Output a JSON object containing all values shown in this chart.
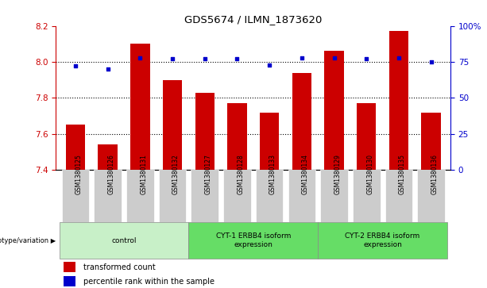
{
  "title": "GDS5674 / ILMN_1873620",
  "samples": [
    "GSM1380125",
    "GSM1380126",
    "GSM1380131",
    "GSM1380132",
    "GSM1380127",
    "GSM1380128",
    "GSM1380133",
    "GSM1380134",
    "GSM1380129",
    "GSM1380130",
    "GSM1380135",
    "GSM1380136"
  ],
  "bar_values": [
    7.65,
    7.54,
    8.1,
    7.9,
    7.83,
    7.77,
    7.72,
    7.94,
    8.06,
    7.77,
    8.17,
    7.72
  ],
  "dot_values": [
    72,
    70,
    78,
    77,
    77,
    77,
    73,
    78,
    78,
    77,
    78,
    75
  ],
  "bar_color": "#CC0000",
  "dot_color": "#0000CC",
  "ylim_left": [
    7.4,
    8.2
  ],
  "ylim_right": [
    0,
    100
  ],
  "yticks_left": [
    7.4,
    7.6,
    7.8,
    8.0,
    8.2
  ],
  "yticks_right": [
    0,
    25,
    50,
    75,
    100
  ],
  "ytick_labels_right": [
    "0",
    "25",
    "50",
    "75",
    "100%"
  ],
  "grid_lines": [
    7.6,
    7.8,
    8.0
  ],
  "group_configs": [
    {
      "start": 0,
      "end": 3,
      "label": "control"
    },
    {
      "start": 4,
      "end": 7,
      "label": "CYT-1 ERBB4 isoform\nexpression"
    },
    {
      "start": 8,
      "end": 11,
      "label": "CYT-2 ERBB4 isoform\nexpression"
    }
  ],
  "group_color_light": "#c8f0c8",
  "group_color_mid": "#66dd66",
  "xlabel_genotype": "genotype/variation",
  "legend_bar": "transformed count",
  "legend_dot": "percentile rank within the sample",
  "bar_width": 0.6,
  "tick_bg_color": "#cccccc",
  "spine_color_left": "#cc0000",
  "spine_color_right": "#0000cc"
}
